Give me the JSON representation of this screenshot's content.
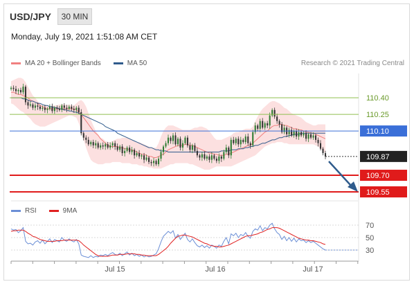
{
  "header": {
    "symbol": "USD/JPY",
    "timeframe": "30 MIN",
    "datetime": "Monday, July 19, 2021 1:51:08 AM CET",
    "credit": "Research © 2021 Trading Central"
  },
  "legend_main": [
    {
      "label": "MA 20 + Bollinger Bands",
      "color": "#f08080"
    },
    {
      "label": "MA 50",
      "color": "#2f5b8c"
    }
  ],
  "legend_rsi": [
    {
      "label": "RSI",
      "color": "#6b8fd6"
    },
    {
      "label": "9MA",
      "color": "#e02020"
    }
  ],
  "colors": {
    "up": "#2e7d32",
    "down": "#333333",
    "resistance": "#8fbf4f",
    "pivot": "#3a6fd8",
    "support": "#e01b1b",
    "band": "#fbd5d5",
    "arrow": "#2f5b8c"
  },
  "chart_data": [
    {
      "type": "candlestick",
      "x_ticks": [
        "Jul 15",
        "Jul 16",
        "Jul 17"
      ],
      "ylim": [
        109.5,
        110.62
      ],
      "levels": [
        {
          "value": 110.4,
          "label": "110.40",
          "kind": "resistance"
        },
        {
          "value": 110.25,
          "label": "110.25",
          "kind": "resistance"
        },
        {
          "value": 110.1,
          "label": "110.10",
          "kind": "pivot"
        },
        {
          "value": 109.87,
          "label": "109.87",
          "kind": "last"
        },
        {
          "value": 109.7,
          "label": "109.70",
          "kind": "support"
        },
        {
          "value": 109.55,
          "label": "109.55",
          "kind": "support"
        }
      ],
      "close": [
        110.49,
        110.48,
        110.46,
        110.47,
        110.45,
        110.5,
        110.36,
        110.33,
        110.34,
        110.31,
        110.33,
        110.32,
        110.3,
        110.31,
        110.29,
        110.3,
        110.32,
        110.28,
        110.31,
        110.3,
        110.29,
        110.33,
        110.31,
        110.3,
        110.32,
        110.3,
        110.29,
        110.31,
        110.27,
        110.08,
        110.04,
        110.02,
        109.98,
        110.0,
        109.97,
        109.99,
        109.95,
        109.97,
        109.96,
        109.98,
        109.95,
        109.97,
        109.99,
        109.96,
        109.93,
        109.96,
        109.9,
        109.92,
        109.95,
        109.91,
        109.93,
        109.88,
        109.9,
        109.87,
        109.88,
        109.84,
        109.86,
        109.82,
        109.81,
        109.83,
        109.8,
        109.85,
        109.91,
        109.96,
        109.99,
        110.04,
        110.01,
        110.06,
        109.98,
        110.03,
        109.95,
        109.99,
        110.04,
        109.97,
        109.93,
        109.97,
        109.92,
        109.88,
        109.86,
        109.89,
        109.85,
        109.87,
        109.84,
        109.88,
        109.85,
        109.83,
        109.87,
        109.85,
        109.91,
        109.95,
        109.88,
        110.02,
        109.99,
        110.03,
        109.98,
        110.02,
        110.0,
        110.05,
        109.99,
        109.97,
        110.09,
        110.15,
        110.12,
        110.19,
        110.13,
        110.17,
        110.15,
        110.24,
        110.29,
        110.23,
        110.19,
        110.16,
        110.09,
        110.13,
        110.07,
        110.11,
        110.06,
        110.1,
        110.05,
        110.09,
        110.06,
        110.08,
        110.03,
        110.07,
        110.04,
        110.06,
        110.02,
        109.99,
        109.94,
        109.9,
        109.87
      ],
      "bollinger": {
        "upper": [
          110.55,
          110.56,
          110.57,
          110.58,
          110.58,
          110.57,
          110.54,
          110.5,
          110.46,
          110.42,
          110.4,
          110.37,
          110.35,
          110.33,
          110.33,
          110.33,
          110.32,
          110.33,
          110.33,
          110.33,
          110.34,
          110.34,
          110.34,
          110.33,
          110.34,
          110.33,
          110.33,
          110.35,
          110.37,
          110.38,
          110.36,
          110.32,
          110.26,
          110.2,
          110.15,
          110.1,
          110.07,
          110.04,
          110.03,
          110.01,
          110.0,
          110.0,
          110.01,
          110.02,
          110.03,
          110.03,
          110.04,
          110.04,
          110.04,
          110.03,
          110.02,
          110.01,
          110.0,
          110.0,
          109.99,
          109.98,
          109.97,
          109.96,
          109.95,
          109.95,
          109.95,
          109.99,
          110.05,
          110.1,
          110.13,
          110.15,
          110.15,
          110.15,
          110.14,
          110.13,
          110.12,
          110.11,
          110.11,
          110.11,
          110.11,
          110.12,
          110.13,
          110.13,
          110.14,
          110.14,
          110.13,
          110.12,
          110.1,
          110.07,
          110.04,
          110.02,
          110.02,
          110.02,
          110.03,
          110.04,
          110.05,
          110.06,
          110.08,
          110.09,
          110.09,
          110.1,
          110.11,
          110.12,
          110.12,
          110.12,
          110.14,
          110.19,
          110.23,
          110.27,
          110.3,
          110.32,
          110.34,
          110.36,
          110.37,
          110.37,
          110.36,
          110.35,
          110.33,
          110.31,
          110.3,
          110.28,
          110.26,
          110.25,
          110.24,
          110.23,
          110.22,
          110.2,
          110.18,
          110.17,
          110.16,
          110.15,
          110.15,
          110.16,
          110.16,
          110.16,
          110.16
        ],
        "middle": [
          110.45,
          110.45,
          110.44,
          110.43,
          110.43,
          110.42,
          110.41,
          110.4,
          110.38,
          110.37,
          110.36,
          110.35,
          110.33,
          110.32,
          110.31,
          110.3,
          110.3,
          110.3,
          110.3,
          110.3,
          110.3,
          110.3,
          110.3,
          110.3,
          110.3,
          110.3,
          110.3,
          110.29,
          110.27,
          110.25,
          110.22,
          110.19,
          110.16,
          110.13,
          110.1,
          110.08,
          110.06,
          110.03,
          110.01,
          109.99,
          109.97,
          109.96,
          109.96,
          109.96,
          109.96,
          109.95,
          109.95,
          109.94,
          109.94,
          109.93,
          109.93,
          109.92,
          109.91,
          109.9,
          109.89,
          109.89,
          109.88,
          109.87,
          109.87,
          109.86,
          109.86,
          109.87,
          109.88,
          109.89,
          109.91,
          109.93,
          109.94,
          109.95,
          109.96,
          109.97,
          109.97,
          109.97,
          109.98,
          109.98,
          109.97,
          109.97,
          109.96,
          109.95,
          109.94,
          109.93,
          109.92,
          109.91,
          109.9,
          109.9,
          109.89,
          109.89,
          109.88,
          109.88,
          109.88,
          109.89,
          109.89,
          109.9,
          109.91,
          109.92,
          109.93,
          109.94,
          109.95,
          109.96,
          109.97,
          109.97,
          109.99,
          110.01,
          110.03,
          110.05,
          110.07,
          110.09,
          110.1,
          110.12,
          110.14,
          110.15,
          110.15,
          110.16,
          110.16,
          110.15,
          110.15,
          110.14,
          110.13,
          110.12,
          110.12,
          110.11,
          110.11,
          110.1,
          110.09,
          110.09,
          110.08,
          110.08,
          110.07,
          110.06,
          110.05,
          110.04,
          110.03
        ],
        "lower": [
          110.35,
          110.34,
          110.32,
          110.3,
          110.28,
          110.27,
          110.25,
          110.23,
          110.21,
          110.18,
          110.16,
          110.15,
          110.14,
          110.14,
          110.14,
          110.15,
          110.16,
          110.17,
          110.18,
          110.19,
          110.2,
          110.21,
          110.22,
          110.23,
          110.24,
          110.24,
          110.23,
          110.22,
          110.17,
          110.1,
          110.02,
          109.95,
          109.89,
          109.84,
          109.82,
          109.81,
          109.8,
          109.8,
          109.8,
          109.81,
          109.81,
          109.81,
          109.82,
          109.82,
          109.82,
          109.82,
          109.81,
          109.81,
          109.81,
          109.81,
          109.8,
          109.8,
          109.8,
          109.79,
          109.79,
          109.78,
          109.78,
          109.77,
          109.77,
          109.76,
          109.76,
          109.76,
          109.76,
          109.77,
          109.78,
          109.79,
          109.8,
          109.8,
          109.81,
          109.81,
          109.81,
          109.81,
          109.81,
          109.81,
          109.8,
          109.8,
          109.79,
          109.78,
          109.77,
          109.76,
          109.75,
          109.75,
          109.75,
          109.76,
          109.77,
          109.78,
          109.78,
          109.78,
          109.78,
          109.78,
          109.78,
          109.78,
          109.79,
          109.8,
          109.81,
          109.82,
          109.83,
          109.84,
          109.85,
          109.86,
          109.87,
          109.88,
          109.9,
          109.92,
          109.94,
          109.96,
          109.97,
          109.98,
          109.99,
          109.99,
          110.0,
          110.0,
          110.0,
          109.99,
          109.99,
          109.98,
          109.98,
          109.98,
          109.98,
          109.98,
          109.98,
          109.98,
          109.98,
          109.98,
          109.98,
          109.98,
          109.97,
          109.96,
          109.94,
          109.92,
          109.9
        ]
      },
      "ma50": [
        110.4,
        110.4,
        110.4,
        110.4,
        110.4,
        110.39,
        110.39,
        110.38,
        110.37,
        110.37,
        110.36,
        110.35,
        110.35,
        110.34,
        110.33,
        110.33,
        110.32,
        110.32,
        110.31,
        110.31,
        110.3,
        110.3,
        110.29,
        110.29,
        110.28,
        110.28,
        110.27,
        110.27,
        110.26,
        110.25,
        110.24,
        110.23,
        110.22,
        110.21,
        110.2,
        110.19,
        110.18,
        110.17,
        110.16,
        110.14,
        110.13,
        110.12,
        110.11,
        110.1,
        110.08,
        110.07,
        110.06,
        110.05,
        110.04,
        110.03,
        110.02,
        110.01,
        110.0,
        109.99,
        109.98,
        109.97,
        109.96,
        109.95,
        109.95,
        109.94,
        109.93,
        109.93,
        109.92,
        109.92,
        109.92,
        109.91,
        109.91,
        109.91,
        109.91,
        109.91,
        109.91,
        109.91,
        109.91,
        109.91,
        109.91,
        109.91,
        109.91,
        109.91,
        109.91,
        109.91,
        109.91,
        109.91,
        109.91,
        109.91,
        109.91,
        109.91,
        109.91,
        109.92,
        109.92,
        109.92,
        109.92,
        109.93,
        109.93,
        109.93,
        109.94,
        109.94,
        109.94,
        109.95,
        109.95,
        109.96,
        109.96,
        109.97,
        109.97,
        109.98,
        109.99,
        109.99,
        110.0,
        110.01,
        110.02,
        110.02,
        110.03,
        110.04,
        110.04,
        110.05,
        110.05,
        110.06,
        110.06,
        110.07,
        110.07,
        110.07,
        110.08,
        110.08,
        110.08,
        110.08,
        110.08,
        110.08,
        110.08,
        110.08,
        110.08,
        110.08,
        110.08
      ]
    },
    {
      "type": "line",
      "ylim": [
        20,
        80
      ],
      "y_ticks": [
        70,
        50,
        30
      ],
      "series": [
        {
          "name": "RSI",
          "values": [
            64,
            62,
            63,
            58,
            61,
            66,
            44,
            40,
            41,
            38,
            43,
            45,
            41,
            46,
            40,
            44,
            48,
            42,
            47,
            45,
            43,
            50,
            46,
            44,
            48,
            45,
            43,
            47,
            40,
            22,
            20,
            19,
            18,
            21,
            18,
            20,
            19,
            22,
            21,
            23,
            21,
            24,
            26,
            23,
            22,
            25,
            21,
            24,
            27,
            22,
            25,
            21,
            23,
            20,
            22,
            19,
            21,
            19,
            20,
            22,
            24,
            32,
            43,
            52,
            56,
            60,
            57,
            61,
            49,
            55,
            47,
            52,
            57,
            47,
            43,
            48,
            42,
            37,
            35,
            38,
            34,
            37,
            33,
            38,
            36,
            33,
            38,
            36,
            44,
            50,
            40,
            56,
            53,
            57,
            50,
            55,
            53,
            58,
            52,
            49,
            60,
            64,
            62,
            69,
            61,
            66,
            64,
            70,
            73,
            64,
            58,
            55,
            47,
            52,
            45,
            50,
            44,
            49,
            43,
            48,
            45,
            46,
            42,
            45,
            42,
            44,
            41,
            38,
            35,
            32,
            30
          ]
        },
        {
          "name": "9MA",
          "values": [
            60,
            61,
            61,
            62,
            62,
            62,
            60,
            57,
            55,
            52,
            51,
            49,
            47,
            46,
            45,
            44,
            44,
            44,
            44,
            45,
            45,
            45,
            46,
            46,
            46,
            46,
            46,
            46,
            45,
            42,
            38,
            35,
            32,
            29,
            26,
            23,
            21,
            20,
            20,
            20,
            20,
            21,
            22,
            22,
            22,
            23,
            23,
            23,
            24,
            24,
            24,
            24,
            23,
            23,
            22,
            22,
            21,
            21,
            21,
            21,
            21,
            23,
            26,
            29,
            32,
            36,
            41,
            45,
            49,
            52,
            53,
            54,
            54,
            53,
            52,
            51,
            49,
            47,
            45,
            43,
            41,
            40,
            38,
            37,
            36,
            36,
            35,
            35,
            36,
            37,
            38,
            40,
            42,
            44,
            46,
            48,
            50,
            52,
            53,
            53,
            54,
            55,
            56,
            58,
            59,
            61,
            63,
            64,
            66,
            66,
            66,
            65,
            63,
            61,
            59,
            57,
            55,
            53,
            51,
            49,
            48,
            47,
            46,
            46,
            45,
            45,
            44,
            43,
            42,
            40,
            39
          ]
        }
      ]
    }
  ]
}
